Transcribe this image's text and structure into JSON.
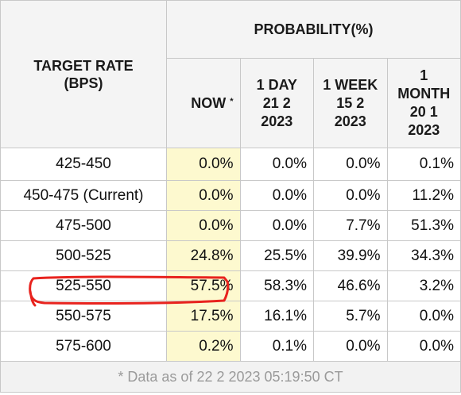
{
  "header": {
    "target_rate_line1": "TARGET RATE",
    "target_rate_line2": "(BPS)",
    "probability": "PROBABILITY(%)",
    "now": "NOW",
    "now_marker": "*",
    "col_1day": [
      "1 DAY",
      "21 2",
      "2023"
    ],
    "col_1week": [
      "1 WEEK",
      "15 2",
      "2023"
    ],
    "col_1month": [
      "1",
      "MONTH",
      "20 1",
      "2023"
    ]
  },
  "rows": [
    {
      "rate": "425-450",
      "now": "0.0%",
      "d1": "0.0%",
      "w1": "0.0%",
      "m1": "0.1%"
    },
    {
      "rate": "450-475 (Current)",
      "now": "0.0%",
      "d1": "0.0%",
      "w1": "0.0%",
      "m1": "11.2%"
    },
    {
      "rate": "475-500",
      "now": "0.0%",
      "d1": "0.0%",
      "w1": "7.7%",
      "m1": "51.3%"
    },
    {
      "rate": "500-525",
      "now": "24.8%",
      "d1": "25.5%",
      "w1": "39.9%",
      "m1": "34.3%"
    },
    {
      "rate": "525-550",
      "now": "57.5%",
      "d1": "58.3%",
      "w1": "46.6%",
      "m1": "3.2%"
    },
    {
      "rate": "550-575",
      "now": "17.5%",
      "d1": "16.1%",
      "w1": "5.7%",
      "m1": "0.0%"
    },
    {
      "rate": "575-600",
      "now": "0.2%",
      "d1": "0.1%",
      "w1": "0.0%",
      "m1": "0.0%"
    }
  ],
  "footer": "* Data as of 22 2 2023 05:19:50 CT",
  "colors": {
    "now_highlight": "#fdf9cf",
    "annotation": "#e8231e",
    "header_bg": "#f4f4f4"
  }
}
